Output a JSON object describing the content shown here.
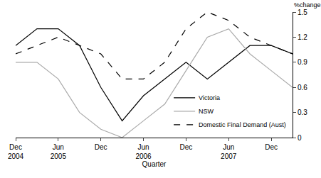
{
  "chart_data": {
    "type": "line",
    "xlabel": "Quarter",
    "ylabel": "%change",
    "categories": [
      "Dec 2004",
      null,
      "Jun 2005",
      null,
      "Dec",
      null,
      "Jun 2006",
      null,
      "Dec",
      null,
      "Jun 2007",
      null,
      "Dec",
      null
    ],
    "series": [
      {
        "name": "Victoria",
        "color": "#000000",
        "line_style": "solid",
        "values": [
          1.1,
          1.3,
          1.3,
          1.1,
          0.6,
          0.2,
          0.5,
          0.7,
          0.9,
          0.7,
          0.9,
          1.1,
          1.1,
          1.0
        ]
      },
      {
        "name": "NSW",
        "color": "#aaaaaa",
        "line_style": "solid",
        "values": [
          0.9,
          0.9,
          0.7,
          0.3,
          0.1,
          0.0,
          0.2,
          0.4,
          0.8,
          1.2,
          1.3,
          1.0,
          0.8,
          0.6
        ]
      },
      {
        "name": "Domestic Final Demand (Aust)",
        "color": "#000000",
        "line_style": "dash",
        "values": [
          1.0,
          1.1,
          1.2,
          1.1,
          1.0,
          0.7,
          0.7,
          0.9,
          1.3,
          1.5,
          1.4,
          1.2,
          1.1,
          1.0
        ]
      }
    ],
    "ylim": [
      0,
      1.5
    ],
    "yticks": [
      0,
      0.3,
      0.6,
      0.9,
      1.2,
      1.5
    ],
    "grid": false,
    "legend": "lower right"
  }
}
